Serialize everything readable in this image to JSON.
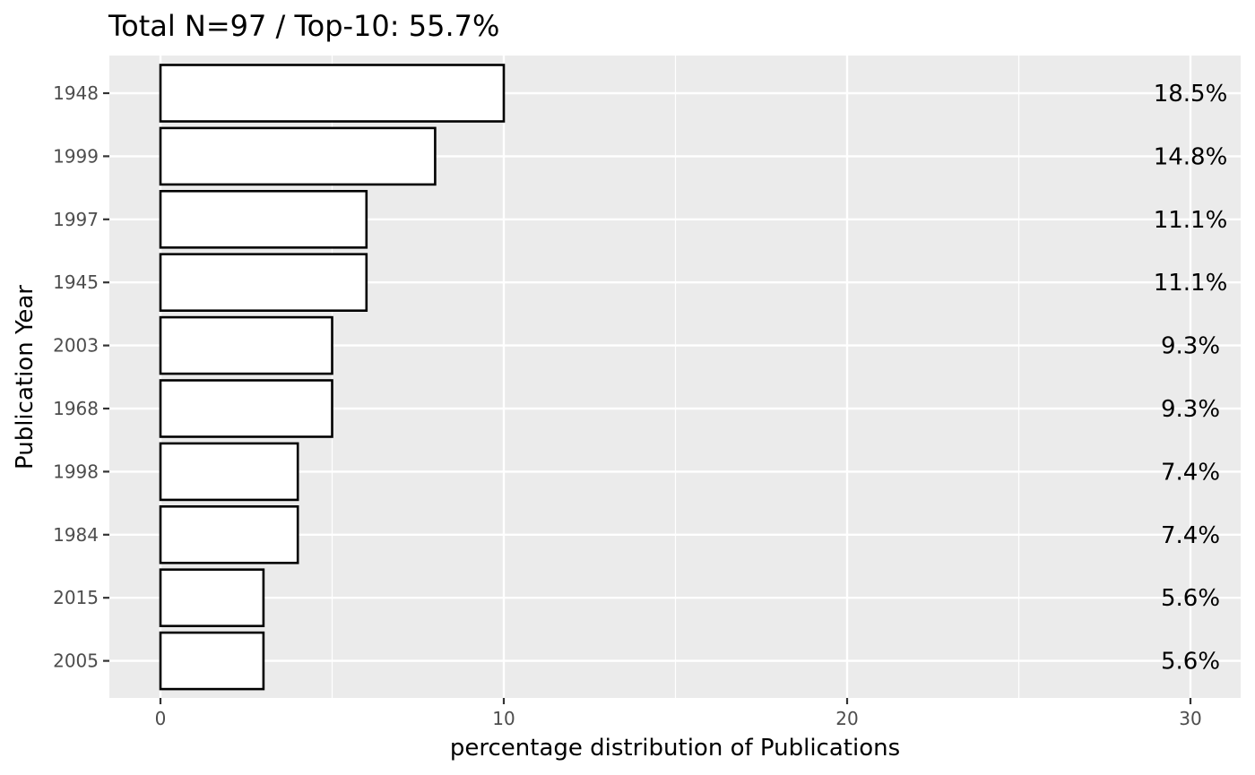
{
  "chart_data": {
    "type": "bar",
    "orientation": "horizontal",
    "title": "Total N=97 / Top-10: 55.7%",
    "xlabel": "percentage distribution of Publications",
    "ylabel": "Publication Year",
    "categories": [
      "1948",
      "1999",
      "1997",
      "1945",
      "2003",
      "1968",
      "1998",
      "1984",
      "2015",
      "2005"
    ],
    "values": [
      10,
      8,
      6,
      6,
      5,
      5,
      4,
      4,
      3,
      3
    ],
    "data_labels": [
      "18.5%",
      "14.8%",
      "11.1%",
      "11.1%",
      "9.3%",
      "9.3%",
      "7.4%",
      "7.4%",
      "5.6%",
      "5.6%"
    ],
    "xlim": [
      0,
      30
    ],
    "xticks": [
      "0",
      "10",
      "20",
      "30"
    ],
    "grid": true,
    "legend": "none",
    "colors": {
      "panel_background": "#ebebeb",
      "grid": "#ffffff",
      "bar_fill": "#ffffff",
      "bar_stroke": "#000000"
    }
  }
}
